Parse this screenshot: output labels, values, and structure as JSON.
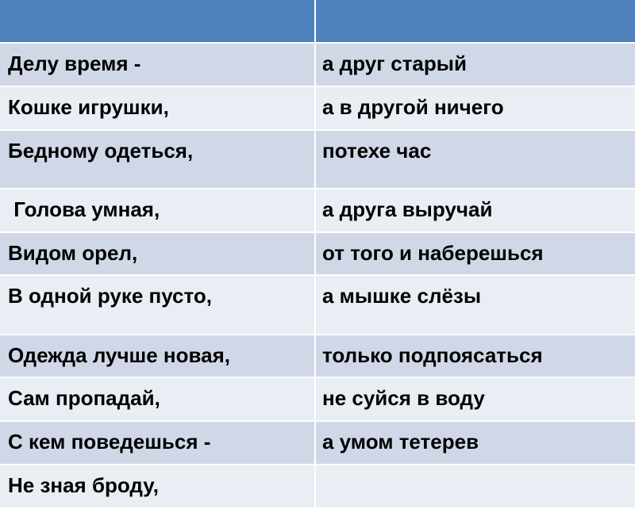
{
  "colors": {
    "header": "#4F81BD",
    "row_band_dark": "#D0D8E8",
    "row_band_light": "#E9EDF4"
  },
  "table": {
    "header": [
      "",
      ""
    ],
    "rows": [
      [
        "Делу время -",
        "а друг старый"
      ],
      [
        "Кошке игрушки,",
        "а в другой ничего"
      ],
      [
        "Бедному одеться,",
        "потехе час"
      ],
      [
        " Голова умная,",
        "а друга выручай"
      ],
      [
        "Видом орел,",
        "от того и наберешься"
      ],
      [
        "В одной руке пусто,",
        "а мышке слёзы"
      ],
      [
        "Одежда лучше новая,",
        "только подпоясаться"
      ],
      [
        "Сам пропадай,",
        "не суйся в воду"
      ],
      [
        "С кем поведешься -",
        "а умом тетерев"
      ],
      [
        "Не зная броду,",
        ""
      ]
    ]
  }
}
